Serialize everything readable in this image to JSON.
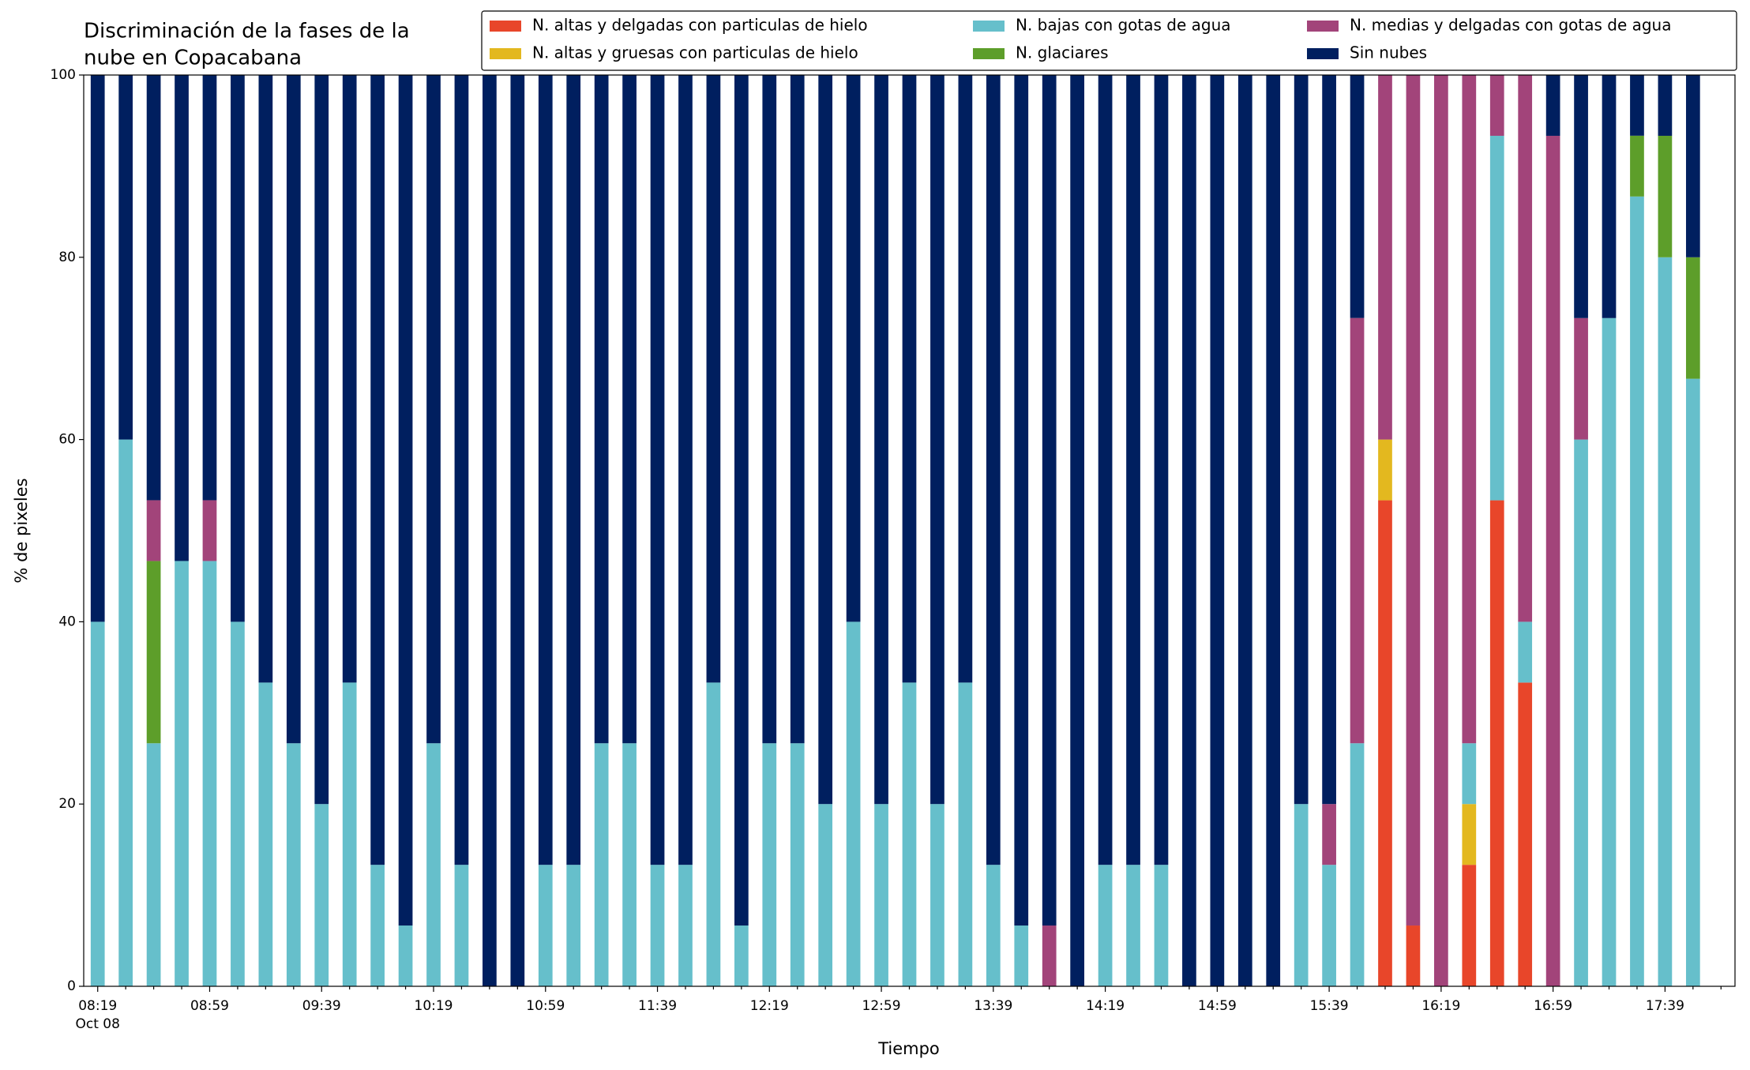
{
  "chart_data": {
    "type": "stacked_bar",
    "title": [
      "Discriminación de la fases de la",
      "nube en Copacabana"
    ],
    "xlabel": "Tiempo",
    "ylabel": "% de pixeles",
    "date_label": "Oct 08",
    "categories": [
      "08:19",
      null,
      null,
      null,
      "08:59",
      null,
      null,
      null,
      "09:39",
      null,
      null,
      null,
      "10:19",
      null,
      null,
      null,
      "10:59",
      null,
      null,
      null,
      "11:39",
      null,
      null,
      null,
      "12:19",
      null,
      null,
      null,
      "12:59",
      null,
      null,
      null,
      "13:39",
      null,
      null,
      null,
      "14:19",
      null,
      null,
      null,
      "14:59",
      null,
      null,
      null,
      "15:39",
      null,
      null,
      null,
      "16:19",
      null,
      null,
      null,
      "16:59",
      null,
      null,
      null,
      "17:39",
      null
    ],
    "ylim": [
      0,
      100
    ],
    "yticks": [
      0,
      20,
      40,
      60,
      80,
      100
    ],
    "series": [
      {
        "name": "N. altas y delgadas con particulas de hielo",
        "color": "#e8462a",
        "values": [
          0,
          0,
          0,
          0,
          0,
          0,
          0,
          0,
          0,
          0,
          0,
          0,
          0,
          0,
          0,
          0,
          0,
          0,
          0,
          0,
          0,
          0,
          0,
          0,
          0,
          0,
          0,
          0,
          0,
          0,
          0,
          0,
          0,
          0,
          0,
          0,
          0,
          0,
          0,
          0,
          0,
          0,
          0,
          0,
          0,
          0,
          53.33,
          6.67,
          0,
          13.33,
          53.33,
          33.33,
          0,
          0,
          0,
          0,
          0,
          0
        ]
      },
      {
        "name": "N. altas y gruesas con particulas de hielo",
        "color": "#e3b81f",
        "values": [
          0,
          0,
          0,
          0,
          0,
          0,
          0,
          0,
          0,
          0,
          0,
          0,
          0,
          0,
          0,
          0,
          0,
          0,
          0,
          0,
          0,
          0,
          0,
          0,
          0,
          0,
          0,
          0,
          0,
          0,
          0,
          0,
          0,
          0,
          0,
          0,
          0,
          0,
          0,
          0,
          0,
          0,
          0,
          0,
          0,
          0,
          6.67,
          0,
          0,
          6.67,
          0,
          0,
          0,
          0,
          0,
          0,
          0,
          0
        ]
      },
      {
        "name": "N. bajas con gotas de agua",
        "color": "#66bfcb",
        "values": [
          40,
          60,
          26.67,
          46.67,
          46.67,
          40,
          33.33,
          26.67,
          20,
          33.33,
          13.33,
          6.67,
          26.67,
          13.33,
          0,
          0,
          13.33,
          13.33,
          26.67,
          26.67,
          13.33,
          13.33,
          33.33,
          6.67,
          26.67,
          26.67,
          20,
          40,
          20,
          33.33,
          20,
          33.33,
          13.33,
          6.67,
          0,
          0,
          13.33,
          13.33,
          13.33,
          0,
          0,
          0,
          0,
          20,
          13.33,
          26.67,
          0,
          0,
          0,
          6.67,
          40,
          6.67,
          0,
          60,
          73.33,
          86.67,
          80,
          66.67
        ]
      },
      {
        "name": "N. glaciares",
        "color": "#5d9e2a",
        "values": [
          0,
          0,
          20,
          0,
          0,
          0,
          0,
          0,
          0,
          0,
          0,
          0,
          0,
          0,
          0,
          0,
          0,
          0,
          0,
          0,
          0,
          0,
          0,
          0,
          0,
          0,
          0,
          0,
          0,
          0,
          0,
          0,
          0,
          0,
          0,
          0,
          0,
          0,
          0,
          0,
          0,
          0,
          0,
          0,
          0,
          0,
          0,
          0,
          0,
          0,
          0,
          0,
          0,
          0,
          0,
          6.67,
          13.33,
          13.33
        ]
      },
      {
        "name": "N. medias y delgadas con gotas de agua",
        "color": "#a2447a",
        "values": [
          0,
          0,
          6.67,
          0,
          6.67,
          0,
          0,
          0,
          0,
          0,
          0,
          0,
          0,
          0,
          0,
          0,
          0,
          0,
          0,
          0,
          0,
          0,
          0,
          0,
          0,
          0,
          0,
          0,
          0,
          0,
          0,
          0,
          0,
          0,
          6.67,
          0,
          0,
          0,
          0,
          0,
          0,
          0,
          0,
          0,
          6.67,
          46.67,
          40,
          93.33,
          100,
          73.33,
          6.67,
          60,
          93.33,
          13.33,
          0,
          0,
          0,
          0
        ]
      },
      {
        "name": "Sin nubes",
        "color": "#001f5f",
        "values": [
          60,
          40,
          46.67,
          53.33,
          46.67,
          60,
          66.67,
          73.33,
          80,
          66.67,
          86.67,
          93.33,
          73.33,
          86.67,
          100,
          100,
          86.67,
          86.67,
          73.33,
          73.33,
          86.67,
          86.67,
          66.67,
          93.33,
          73.33,
          73.33,
          80,
          60,
          80,
          66.67,
          80,
          66.67,
          86.67,
          93.33,
          93.33,
          100,
          86.67,
          86.67,
          86.67,
          100,
          100,
          100,
          100,
          80,
          80,
          26.67,
          0,
          0,
          0,
          0,
          0,
          0,
          6.67,
          26.67,
          26.67,
          6.67,
          6.67,
          20
        ]
      }
    ]
  }
}
